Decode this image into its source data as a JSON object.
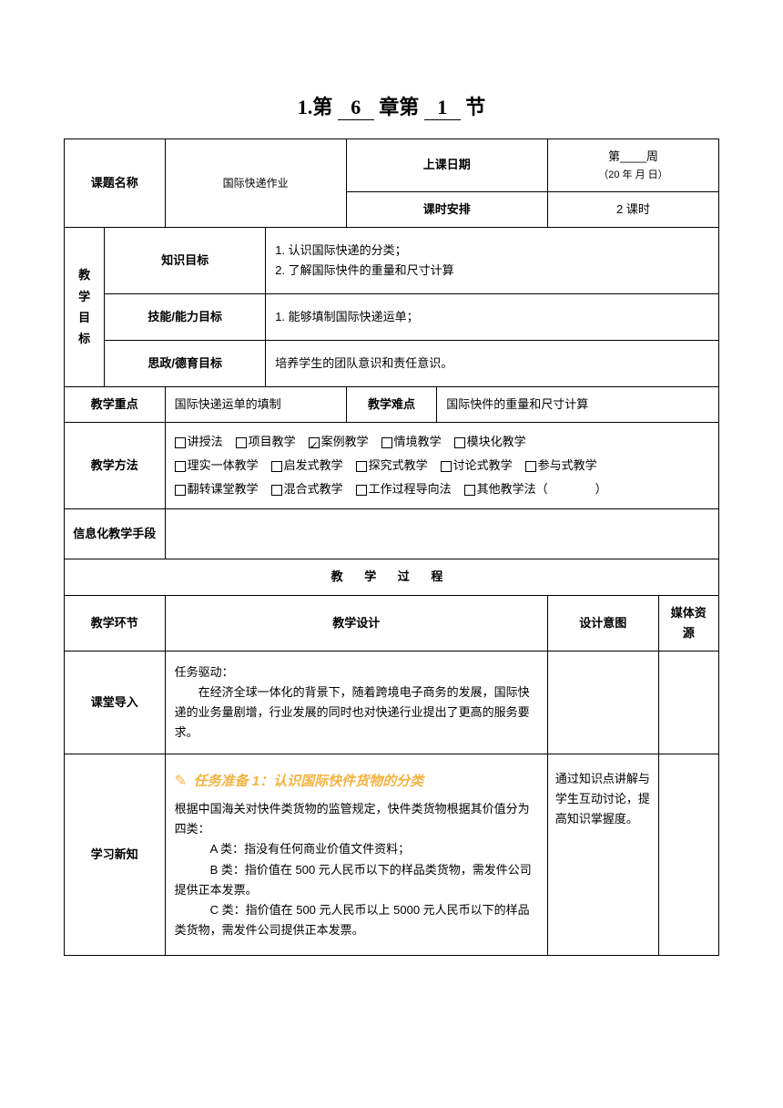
{
  "heading": {
    "prefix": "1.第",
    "chapter": "6",
    "mid": "章第",
    "section": "1",
    "suffix": "节"
  },
  "header": {
    "topic_label": "课题名称",
    "topic_value": "国际快递作业",
    "date_label": "上课日期",
    "date_line1": "第____周",
    "date_line2": "（20 年   月   日）",
    "hours_label": "课时安排",
    "hours_value": "2 课时"
  },
  "objectives": {
    "main_label": "教学目标",
    "knowledge_label": "知识目标",
    "knowledge_content": "1.  认识国际快递的分类；\n2.  了解国际快件的重量和尺寸计算",
    "skill_label": "技能/能力目标",
    "skill_content": "1.  能够填制国际快递运单；",
    "moral_label": "思政/德育目标",
    "moral_content": "培养学生的团队意识和责任意识。"
  },
  "key_points": {
    "focus_label": "教学重点",
    "focus_content": "国际快递运单的填制",
    "difficulty_label": "教学难点",
    "difficulty_content": "国际快件的重量和尺寸计算"
  },
  "methods": {
    "label": "教学方法",
    "items": [
      {
        "text": "讲授法",
        "checked": false
      },
      {
        "text": "项目教学",
        "checked": false
      },
      {
        "text": "案例教学",
        "checked": true
      },
      {
        "text": "情境教学",
        "checked": false
      },
      {
        "text": "模块化教学",
        "checked": false
      },
      {
        "text": "理实一体教学",
        "checked": false
      },
      {
        "text": "启发式教学",
        "checked": false
      },
      {
        "text": "探究式教学",
        "checked": false
      },
      {
        "text": "讨论式教学",
        "checked": false
      },
      {
        "text": "参与式教学",
        "checked": false
      },
      {
        "text": "翻转课堂教学",
        "checked": false
      },
      {
        "text": "混合式教学",
        "checked": false
      },
      {
        "text": "工作过程导向法",
        "checked": false
      },
      {
        "text": "其他教学法（　　　　）",
        "checked": false
      }
    ]
  },
  "info_label": "信息化教学手段",
  "process": {
    "header": "教 学 过 程",
    "col1": "教学环节",
    "col2": "教学设计",
    "col3": "设计意图",
    "col4": "媒体资源"
  },
  "intro": {
    "label": "课堂导入",
    "task": "任务驱动：",
    "content": "在经济全球一体化的背景下，随着跨境电子商务的发展，国际快递的业务量剧增，行业发展的同时也对快递行业提出了更高的服务要求。"
  },
  "learn": {
    "label": "学习新知",
    "task_title": "任务准备 1：认识国际快件货物的分类",
    "p1": "根据中国海关对快件类货物的监管规定，快件类货物根据其价值分为四类：",
    "p2": "A 类：指没有任何商业价值文件资料；",
    "p3": "B 类：指价值在 500 元人民币以下的样品类货物，需发件公司提供正本发票。",
    "p4": "C 类：指价值在 500 元人民币以上 5000 元人民币以下的样品类货物，需发件公司提供正本发票。",
    "intent": "通过知识点讲解与学生互动讨论，提高知识掌握度。"
  },
  "colors": {
    "task_color": "#f4b342",
    "border_color": "#000000",
    "background": "#ffffff"
  }
}
